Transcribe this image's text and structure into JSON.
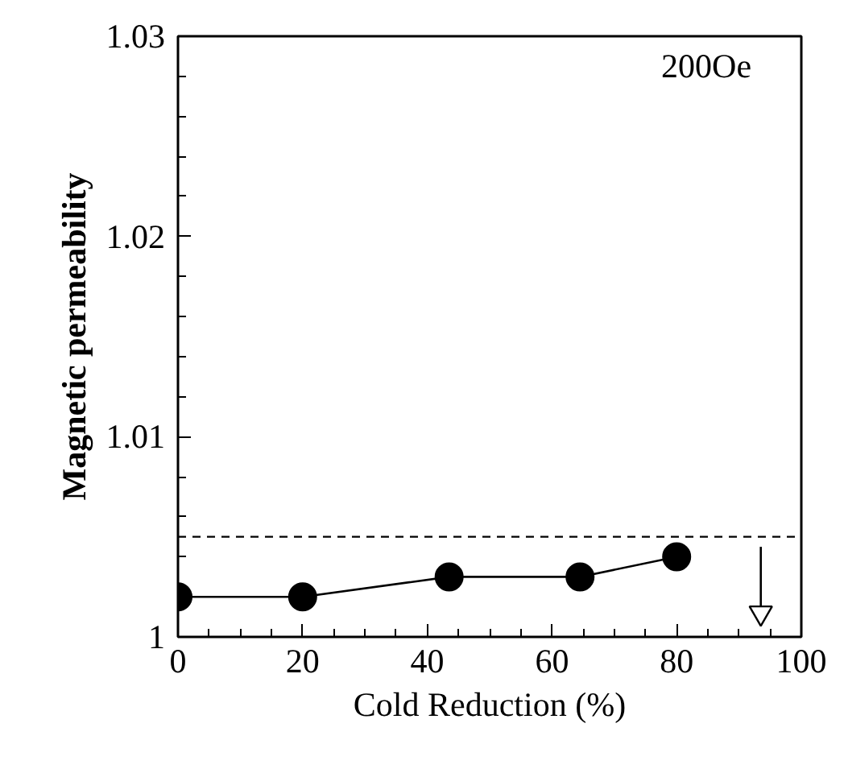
{
  "chart_data": {
    "type": "line",
    "xlabel": "Cold Reduction (%)",
    "ylabel": "Magnetic permeability",
    "annotations": [
      "200Oe"
    ],
    "x": [
      0,
      20,
      43.5,
      64.5,
      80
    ],
    "series": [
      {
        "color": "#000000",
        "values": [
          1.002,
          1.002,
          1.003,
          1.003,
          1.004
        ]
      },
      {
        "type": "line",
        "color": "#000000",
        "x": [
          93.5,
          93.5
        ],
        "values": [
          1.0045,
          1.0012
        ],
        "marker": "triangle"
      }
    ],
    "marker": "circle",
    "line_style": "solid",
    "grid": false,
    "xlim": [
      0,
      100
    ],
    "xticks": [
      0,
      20,
      40,
      60,
      80,
      100
    ],
    "ylim": [
      1,
      1.03
    ],
    "yticks": [
      1,
      1.01,
      1.02,
      1.03
    ],
    "ref_lines": [
      {
        "axis": "y",
        "value": 1.005,
        "line_style": "dashed",
        "color": "#000000"
      }
    ]
  }
}
